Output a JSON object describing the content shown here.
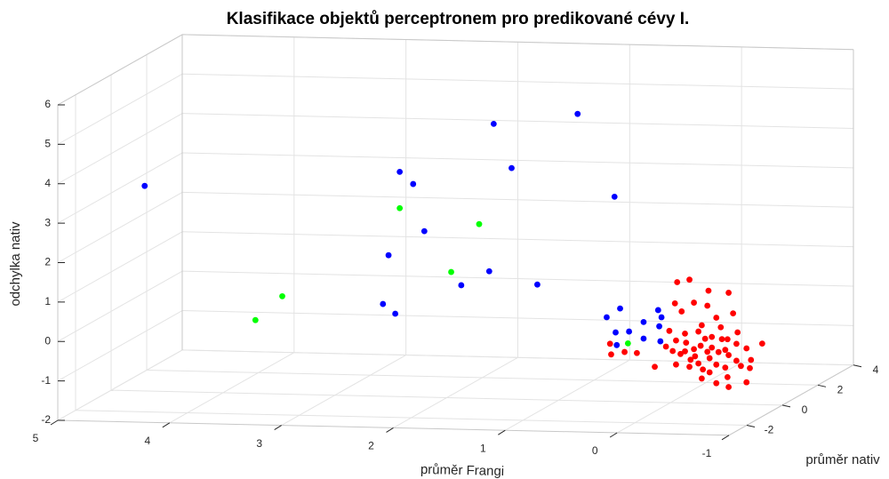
{
  "chart_data": {
    "type": "scatter3d",
    "title": "Klasifikace objektů perceptronem pro predikované cévy I.",
    "xlabel": "průměr Frangi",
    "ylabel": "průměr nativ",
    "zlabel": "odchylka nativ",
    "xlim": [
      -1,
      5
    ],
    "xticks": [
      -1,
      0,
      1,
      2,
      3,
      4,
      5
    ],
    "ylim": [
      -3,
      4
    ],
    "yticks": [
      -2,
      0,
      2,
      4
    ],
    "zlim": [
      -2,
      6
    ],
    "zticks": [
      -2,
      -1,
      0,
      1,
      2,
      3,
      4,
      5,
      6
    ],
    "grid": true,
    "series": [
      {
        "color": "#0000ff",
        "x": [
          4.7,
          2.42,
          2.3,
          1.58,
          0.83,
          1.42,
          0.5,
          2.2,
          2.52,
          1.62,
          1.87,
          1.19,
          2.57,
          2.46,
          0.57,
          0.45,
          0.49,
          0.37,
          0.24,
          0.11,
          0.08,
          0.1,
          0.24,
          0.09,
          0.48
        ],
        "y": [
          0,
          0,
          0,
          0,
          0,
          0,
          0,
          0,
          0,
          0,
          0,
          0,
          0,
          0,
          0,
          0,
          0,
          0,
          0,
          0,
          0,
          0,
          0,
          0,
          0
        ],
        "z": [
          3.2,
          3.7,
          3.4,
          4.97,
          5.27,
          3.86,
          3.19,
          2.21,
          1.58,
          1.23,
          0.86,
          0.92,
          0.34,
          0.1,
          0.13,
          0.36,
          -0.25,
          -0.22,
          0.03,
          0.34,
          0.16,
          -0.07,
          -0.39,
          -0.45,
          -0.57
        ]
      },
      {
        "color": "#00ff00",
        "x": [
          2.42,
          1.71,
          1.96,
          3.47,
          3.71,
          0.38
        ],
        "y": [
          0,
          0,
          0,
          0,
          0,
          0
        ],
        "z": [
          2.78,
          2.42,
          1.19,
          0.48,
          -0.14,
          -0.52
        ]
      },
      {
        "color": "#ff0000",
        "x": [
          -0.06,
          -0.17,
          -0.34,
          -0.52,
          -0.04,
          -0.21,
          -0.33,
          -0.1,
          -0.41,
          -0.56,
          -0.28,
          -0.45,
          -0.6,
          -0.37,
          -0.14,
          -0.05,
          -0.27,
          -0.49,
          -0.68,
          -0.82,
          -0.72,
          -0.09,
          -0.22,
          -0.35,
          -0.52,
          0.14,
          -0.05,
          -0.17,
          -0.29,
          -0.41,
          -0.63,
          -0.71,
          -0.28,
          -0.41,
          -0.51,
          -0.68,
          -0.52,
          0.54,
          0.41,
          0.3,
          0.53,
          0.01,
          -0.13,
          -0.25,
          -0.37,
          -0.46,
          -0.21,
          -0.33,
          -0.18,
          -0.43,
          0.04,
          -0.59,
          -0.31,
          -0.13,
          -0.25,
          -0.49,
          -0.35,
          -0.59,
          -0.02,
          -0.51
        ],
        "y": [
          0,
          0,
          0,
          0,
          0,
          0,
          0,
          0,
          0,
          0,
          0,
          0,
          0,
          0,
          0,
          0,
          0,
          0,
          0,
          0,
          0,
          0,
          0,
          0,
          0,
          0,
          0,
          0,
          0,
          0,
          0,
          0,
          0,
          0,
          0,
          0,
          0,
          0,
          0,
          0,
          0,
          0,
          0,
          0,
          0,
          0,
          0,
          0,
          0,
          0,
          0,
          0,
          0,
          0,
          0,
          0,
          0,
          0,
          0,
          0
        ],
        "z": [
          1.06,
          1.13,
          0.86,
          0.82,
          0.52,
          0.55,
          0.48,
          0.32,
          0.18,
          0.3,
          -0.02,
          -0.06,
          -0.18,
          -0.31,
          -0.47,
          -0.42,
          -0.54,
          -0.63,
          -0.58,
          -0.45,
          -0.87,
          -0.76,
          -0.81,
          -0.85,
          -0.76,
          -1.1,
          -1.03,
          -1.08,
          -1.14,
          -1.01,
          -1.03,
          -1.08,
          -1.37,
          -1.48,
          -1.32,
          -1.44,
          -1.57,
          -0.54,
          -0.74,
          -0.76,
          -0.81,
          -0.18,
          -0.24,
          -0.18,
          -0.58,
          -0.36,
          -0.63,
          -0.69,
          -0.9,
          -0.69,
          -0.58,
          -0.47,
          -0.36,
          -0.69,
          -0.99,
          -1.08,
          -1.21,
          -0.9,
          -0.69,
          -0.36
        ]
      }
    ]
  }
}
